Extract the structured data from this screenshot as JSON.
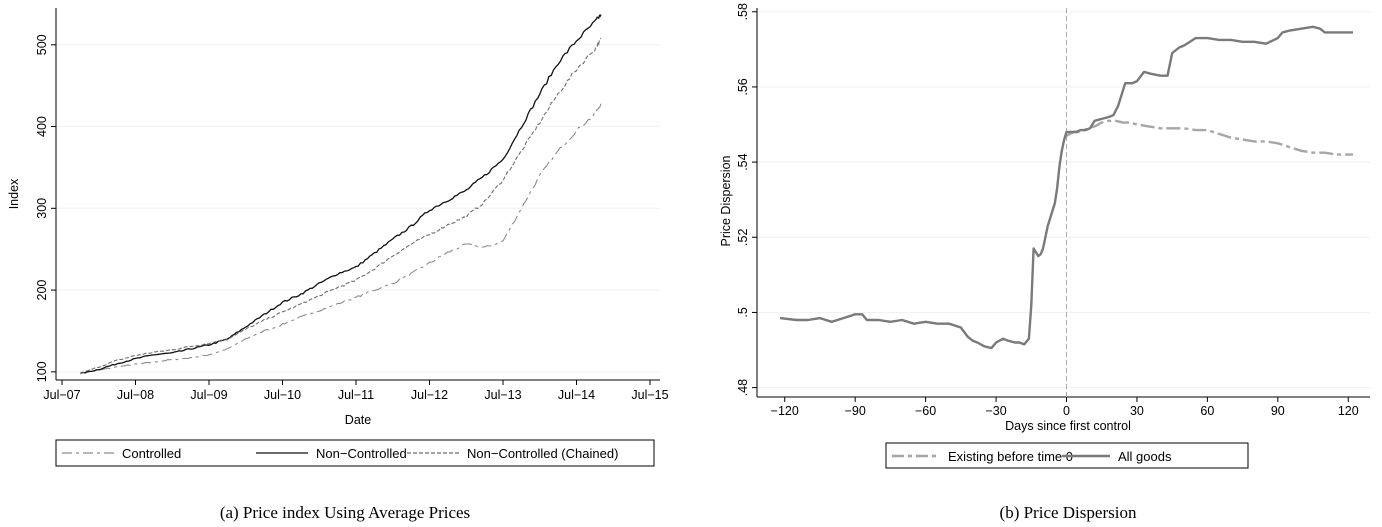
{
  "chart_data": [
    {
      "type": "line",
      "caption": "(a) Price index Using Average Prices",
      "xlabel": "Date",
      "ylabel": "Index",
      "x_ticks": [
        "Jul−07",
        "Jul−08",
        "Jul−09",
        "Jul−10",
        "Jul−11",
        "Jul−12",
        "Jul−13",
        "Jul−14",
        "Jul−15"
      ],
      "xlim": [
        "2007-07",
        "2015-07"
      ],
      "y_ticks": [
        "100",
        "200",
        "300",
        "400",
        "500"
      ],
      "ylim": [
        90,
        545
      ],
      "grid": "horizontal",
      "legend_position": "bottom",
      "x": [
        "2007-10",
        "2008-01",
        "2008-04",
        "2008-07",
        "2008-10",
        "2009-01",
        "2009-04",
        "2009-07",
        "2009-10",
        "2010-01",
        "2010-04",
        "2010-07",
        "2010-10",
        "2011-01",
        "2011-04",
        "2011-07",
        "2011-10",
        "2012-01",
        "2012-04",
        "2012-07",
        "2012-10",
        "2013-01",
        "2013-04",
        "2013-07",
        "2013-10",
        "2014-01",
        "2014-04",
        "2014-07",
        "2014-10",
        "2014-11"
      ],
      "series": [
        {
          "name": "Controlled",
          "color": "#8c8c8c",
          "dash": "long-dash",
          "values": [
            98,
            102,
            106,
            109,
            112,
            115,
            117,
            121,
            128,
            140,
            150,
            158,
            167,
            175,
            183,
            191,
            200,
            208,
            220,
            233,
            246,
            256,
            252,
            260,
            300,
            340,
            370,
            395,
            415,
            428
          ]
        },
        {
          "name": "Non−Controlled",
          "color": "#111111",
          "dash": "solid",
          "values": [
            98,
            103,
            110,
            116,
            121,
            123,
            128,
            133,
            140,
            155,
            170,
            185,
            195,
            208,
            220,
            228,
            245,
            262,
            278,
            298,
            310,
            322,
            340,
            360,
            400,
            440,
            478,
            505,
            528,
            537
          ]
        },
        {
          "name": "Non−Controlled (Chained)",
          "color": "#6e6e6e",
          "dash": "short-dash",
          "values": [
            98,
            106,
            114,
            120,
            124,
            127,
            131,
            135,
            140,
            152,
            163,
            173,
            183,
            193,
            203,
            212,
            226,
            242,
            256,
            268,
            280,
            290,
            308,
            335,
            370,
            405,
            440,
            470,
            495,
            508
          ]
        }
      ]
    },
    {
      "type": "line",
      "caption": "(b) Price Dispersion",
      "xlabel": "Days since first control",
      "ylabel": "Price Dispersion",
      "x_ticks": [
        "−120",
        "−90",
        "−60",
        "−30",
        "0",
        "30",
        "60",
        "90",
        "120"
      ],
      "xlim": [
        -125,
        125
      ],
      "y_ticks": [
        ".48",
        ".5",
        ".52",
        ".54",
        ".56",
        ".58"
      ],
      "y_tick_values": [
        0.48,
        0.5,
        0.52,
        0.54,
        0.56,
        0.58
      ],
      "ylim": [
        0.4775,
        0.581
      ],
      "grid": "horizontal",
      "vertical_reference_line": 0,
      "legend_position": "bottom",
      "series": [
        {
          "name": "Existing before time 0",
          "color": "#a6a6a6",
          "dash": "long-dash",
          "x": [
            0,
            3,
            6,
            9,
            12,
            15,
            18,
            21,
            24,
            27,
            30,
            35,
            40,
            45,
            50,
            55,
            60,
            65,
            70,
            75,
            80,
            85,
            90,
            95,
            100,
            105,
            110,
            115,
            120,
            122
          ],
          "values": [
            0.547,
            0.548,
            0.548,
            0.549,
            0.5495,
            0.5505,
            0.551,
            0.551,
            0.5505,
            0.5505,
            0.55,
            0.5495,
            0.549,
            0.549,
            0.549,
            0.5485,
            0.5485,
            0.5475,
            0.5465,
            0.546,
            0.5455,
            0.5455,
            0.545,
            0.544,
            0.543,
            0.5425,
            0.5425,
            0.542,
            0.542,
            0.542
          ]
        },
        {
          "name": "All goods",
          "color": "#7a7a7a",
          "dash": "solid",
          "x": [
            -122,
            -115,
            -110,
            -105,
            -100,
            -95,
            -90,
            -87,
            -85,
            -80,
            -75,
            -70,
            -65,
            -60,
            -55,
            -50,
            -45,
            -42,
            -40,
            -38,
            -35,
            -32,
            -30,
            -27,
            -25,
            -22,
            -20,
            -18,
            -16,
            -15,
            -14,
            -13,
            -12,
            -11,
            -10,
            -9,
            -8,
            -7,
            -6,
            -5,
            -4,
            -3,
            -2,
            -1,
            0,
            2,
            4,
            6,
            8,
            10,
            12,
            15,
            18,
            20,
            22,
            25,
            28,
            30,
            33,
            36,
            40,
            43,
            45,
            48,
            50,
            55,
            60,
            65,
            70,
            75,
            80,
            85,
            90,
            92,
            95,
            100,
            105,
            108,
            110,
            115,
            120,
            122
          ],
          "values": [
            0.4985,
            0.498,
            0.498,
            0.4985,
            0.4975,
            0.4985,
            0.4995,
            0.4995,
            0.498,
            0.498,
            0.4975,
            0.498,
            0.497,
            0.4975,
            0.497,
            0.497,
            0.496,
            0.4935,
            0.4925,
            0.492,
            0.491,
            0.4905,
            0.492,
            0.493,
            0.4925,
            0.492,
            0.492,
            0.4915,
            0.493,
            0.502,
            0.517,
            0.516,
            0.515,
            0.5155,
            0.517,
            0.52,
            0.523,
            0.525,
            0.527,
            0.529,
            0.533,
            0.539,
            0.543,
            0.546,
            0.548,
            0.548,
            0.548,
            0.5485,
            0.5485,
            0.549,
            0.551,
            0.5515,
            0.552,
            0.5525,
            0.555,
            0.561,
            0.561,
            0.5615,
            0.564,
            0.5635,
            0.563,
            0.563,
            0.569,
            0.5705,
            0.571,
            0.573,
            0.573,
            0.5725,
            0.5725,
            0.572,
            0.572,
            0.5715,
            0.573,
            0.5745,
            0.575,
            0.5755,
            0.576,
            0.5755,
            0.5745,
            0.5745,
            0.5745,
            0.5745
          ]
        }
      ]
    }
  ]
}
